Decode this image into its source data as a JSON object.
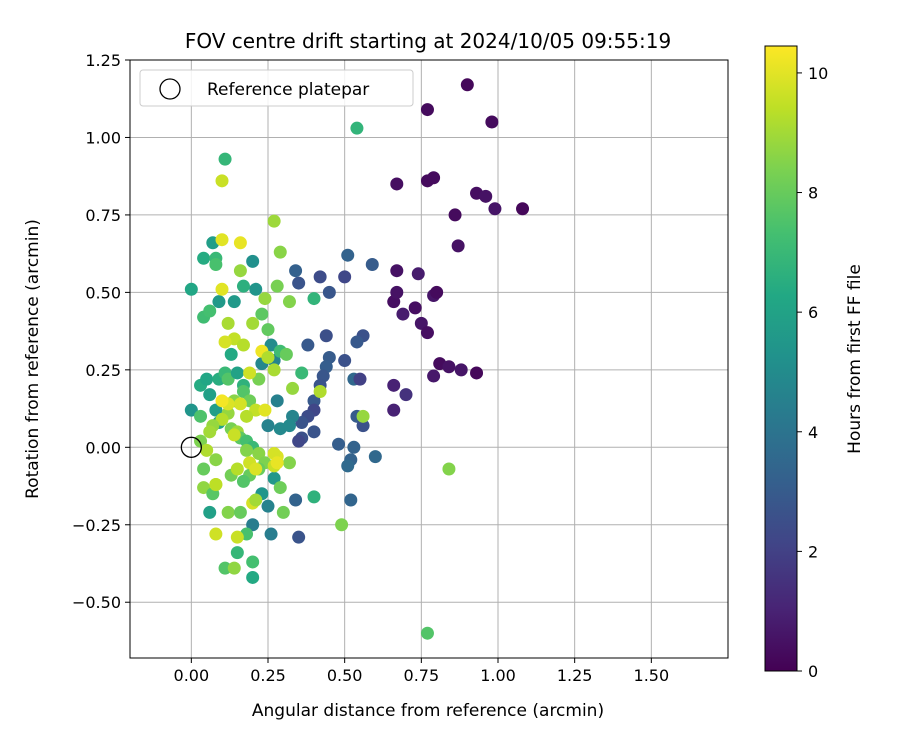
{
  "chart_data": {
    "type": "scatter",
    "title": "FOV centre drift starting at 2024/10/05 09:55:19",
    "xlabel": "Angular distance from reference (arcmin)",
    "ylabel": "Rotation from reference (arcmin)",
    "xlim": [
      -0.2,
      1.75
    ],
    "ylim": [
      -0.68,
      1.25
    ],
    "xticks": [
      "0.00",
      "0.25",
      "0.50",
      "0.75",
      "1.00",
      "1.25",
      "1.50"
    ],
    "yticks": [
      "−0.50",
      "−0.25",
      "0.00",
      "0.25",
      "0.50",
      "0.75",
      "1.00",
      "1.25"
    ],
    "grid": true,
    "legend": {
      "position": "top-left",
      "label": "Reference platepar"
    },
    "reference_point": {
      "x": 0.0,
      "y": 0.0
    },
    "colorbar": {
      "label": "Hours from first FF file",
      "min": 0,
      "max": 10.45,
      "ticks": [
        "0",
        "2",
        "4",
        "6",
        "8",
        "10"
      ],
      "colormap": "viridis"
    },
    "points": [
      [
        0.9,
        1.17,
        0.2
      ],
      [
        0.77,
        1.09,
        0.3
      ],
      [
        0.98,
        1.05,
        0.3
      ],
      [
        0.67,
        0.85,
        0.4
      ],
      [
        0.77,
        0.86,
        0.3
      ],
      [
        0.79,
        0.87,
        0.3
      ],
      [
        0.93,
        0.82,
        0.4
      ],
      [
        0.96,
        0.81,
        0.5
      ],
      [
        1.08,
        0.77,
        0.2
      ],
      [
        0.99,
        0.77,
        0.6
      ],
      [
        0.86,
        0.75,
        0.3
      ],
      [
        0.87,
        0.65,
        0.5
      ],
      [
        0.67,
        0.57,
        0.5
      ],
      [
        0.74,
        0.56,
        0.8
      ],
      [
        0.66,
        0.47,
        0.4
      ],
      [
        0.67,
        0.5,
        0.5
      ],
      [
        0.79,
        0.49,
        0.6
      ],
      [
        0.8,
        0.5,
        0.3
      ],
      [
        0.73,
        0.45,
        0.4
      ],
      [
        0.69,
        0.43,
        0.8
      ],
      [
        0.75,
        0.4,
        0.6
      ],
      [
        0.77,
        0.37,
        0.4
      ],
      [
        0.81,
        0.27,
        0.3
      ],
      [
        0.84,
        0.26,
        0.5
      ],
      [
        0.88,
        0.25,
        0.6
      ],
      [
        0.93,
        0.24,
        0.2
      ],
      [
        0.79,
        0.23,
        0.7
      ],
      [
        0.66,
        0.2,
        1.0
      ],
      [
        0.7,
        0.17,
        1.5
      ],
      [
        0.66,
        0.12,
        1.0
      ],
      [
        0.51,
        0.62,
        3.3
      ],
      [
        0.59,
        0.59,
        3.0
      ],
      [
        0.5,
        0.55,
        2.2
      ],
      [
        0.42,
        0.55,
        2.4
      ],
      [
        0.34,
        0.57,
        3.2
      ],
      [
        0.35,
        0.53,
        2.7
      ],
      [
        0.45,
        0.5,
        2.8
      ],
      [
        0.44,
        0.36,
        2.5
      ],
      [
        0.38,
        0.33,
        2.9
      ],
      [
        0.56,
        0.36,
        2.6
      ],
      [
        0.54,
        0.34,
        2.9
      ],
      [
        0.5,
        0.28,
        2.6
      ],
      [
        0.45,
        0.29,
        3.0
      ],
      [
        0.44,
        0.26,
        3.1
      ],
      [
        0.43,
        0.23,
        2.8
      ],
      [
        0.53,
        0.22,
        3.5
      ],
      [
        0.55,
        0.22,
        2.0
      ],
      [
        0.42,
        0.2,
        2.7
      ],
      [
        0.4,
        0.15,
        2.9
      ],
      [
        0.4,
        0.12,
        2.2
      ],
      [
        0.54,
        0.1,
        3.0
      ],
      [
        0.56,
        0.07,
        2.6
      ],
      [
        0.38,
        0.1,
        2.4
      ],
      [
        0.36,
        0.08,
        2.7
      ],
      [
        0.36,
        0.03,
        2.6
      ],
      [
        0.35,
        0.02,
        2.2
      ],
      [
        0.4,
        0.05,
        2.7
      ],
      [
        0.48,
        0.01,
        3.1
      ],
      [
        0.53,
        0.0,
        3.3
      ],
      [
        0.52,
        -0.04,
        3.3
      ],
      [
        0.51,
        -0.06,
        3.6
      ],
      [
        0.6,
        -0.03,
        3.5
      ],
      [
        0.52,
        -0.17,
        3.4
      ],
      [
        0.34,
        -0.17,
        3.3
      ],
      [
        0.35,
        -0.29,
        2.7
      ],
      [
        0.26,
        -0.28,
        4.4
      ],
      [
        0.2,
        -0.25,
        4.4
      ],
      [
        0.25,
        -0.19,
        4.6
      ],
      [
        0.23,
        -0.15,
        5.4
      ],
      [
        0.27,
        -0.1,
        5.5
      ],
      [
        0.29,
        0.06,
        4.9
      ],
      [
        0.25,
        0.07,
        4.6
      ],
      [
        0.28,
        0.15,
        4.5
      ],
      [
        0.33,
        0.1,
        4.7
      ],
      [
        0.32,
        0.07,
        4.9
      ],
      [
        0.27,
        0.28,
        4.7
      ],
      [
        0.23,
        0.27,
        4.8
      ],
      [
        0.26,
        0.33,
        5.0
      ],
      [
        0.2,
        0.6,
        5.2
      ],
      [
        0.21,
        0.51,
        5.4
      ],
      [
        0.14,
        0.47,
        5.6
      ],
      [
        0.09,
        0.47,
        5.6
      ],
      [
        0.07,
        0.66,
        5.8
      ],
      [
        0.04,
        0.61,
        6.4
      ],
      [
        0.08,
        0.61,
        7.0
      ],
      [
        0.08,
        0.59,
        7.4
      ],
      [
        0.0,
        0.51,
        6.2
      ],
      [
        0.04,
        0.42,
        7.2
      ],
      [
        0.06,
        0.44,
        7.3
      ],
      [
        0.11,
        0.93,
        6.9
      ],
      [
        0.54,
        1.03,
        6.8
      ],
      [
        0.17,
        0.52,
        6.6
      ],
      [
        0.23,
        0.43,
        7.8
      ],
      [
        0.25,
        0.38,
        7.9
      ],
      [
        0.29,
        0.31,
        7.2
      ],
      [
        0.03,
        0.2,
        6.4
      ],
      [
        0.05,
        0.22,
        6.2
      ],
      [
        0.06,
        0.17,
        5.9
      ],
      [
        0.08,
        0.12,
        5.8
      ],
      [
        0.09,
        0.08,
        6.1
      ],
      [
        0.0,
        0.12,
        5.4
      ],
      [
        0.03,
        0.1,
        7.5
      ],
      [
        0.09,
        0.22,
        6.5
      ],
      [
        0.11,
        0.24,
        7.0
      ],
      [
        0.12,
        0.22,
        7.6
      ],
      [
        0.13,
        0.3,
        6.3
      ],
      [
        0.15,
        0.24,
        6.0
      ],
      [
        0.17,
        0.2,
        6.7
      ],
      [
        0.17,
        0.18,
        7.6
      ],
      [
        0.19,
        0.15,
        8.1
      ],
      [
        0.14,
        0.15,
        8.6
      ],
      [
        0.12,
        0.11,
        8.8
      ],
      [
        0.1,
        0.09,
        9.3
      ],
      [
        0.13,
        0.06,
        8.3
      ],
      [
        0.15,
        0.05,
        8.9
      ],
      [
        0.16,
        0.03,
        7.8
      ],
      [
        0.18,
        0.02,
        7.3
      ],
      [
        0.2,
        0.0,
        7.0
      ],
      [
        0.18,
        -0.01,
        8.5
      ],
      [
        0.22,
        -0.02,
        8.6
      ],
      [
        0.24,
        -0.05,
        8.4
      ],
      [
        0.22,
        -0.07,
        8.0
      ],
      [
        0.19,
        -0.09,
        8.0
      ],
      [
        0.17,
        -0.11,
        7.6
      ],
      [
        0.13,
        -0.09,
        8.2
      ],
      [
        0.04,
        -0.07,
        8.0
      ],
      [
        0.04,
        -0.13,
        8.7
      ],
      [
        0.06,
        -0.21,
        5.9
      ],
      [
        0.07,
        -0.15,
        7.7
      ],
      [
        0.08,
        -0.12,
        9.4
      ],
      [
        0.12,
        -0.21,
        8.5
      ],
      [
        0.16,
        -0.21,
        8.0
      ],
      [
        0.18,
        -0.28,
        7.4
      ],
      [
        0.15,
        -0.34,
        6.9
      ],
      [
        0.15,
        -0.29,
        9.6
      ],
      [
        0.11,
        -0.39,
        7.6
      ],
      [
        0.14,
        -0.39,
        8.7
      ],
      [
        0.2,
        -0.37,
        7.3
      ],
      [
        0.2,
        -0.42,
        6.3
      ],
      [
        0.08,
        -0.28,
        9.7
      ],
      [
        0.29,
        -0.13,
        8.1
      ],
      [
        0.3,
        -0.21,
        8.2
      ],
      [
        0.32,
        -0.05,
        8.5
      ],
      [
        0.28,
        -0.03,
        9.9
      ],
      [
        0.27,
        -0.06,
        9.6
      ],
      [
        0.1,
        0.86,
        9.6
      ],
      [
        0.1,
        0.67,
        10.0
      ],
      [
        0.16,
        0.66,
        10.1
      ],
      [
        0.27,
        0.73,
        8.9
      ],
      [
        0.29,
        0.63,
        8.6
      ],
      [
        0.16,
        0.57,
        8.8
      ],
      [
        0.1,
        0.51,
        10.0
      ],
      [
        0.24,
        0.48,
        8.8
      ],
      [
        0.28,
        0.52,
        8.3
      ],
      [
        0.32,
        0.47,
        8.5
      ],
      [
        0.12,
        0.4,
        9.1
      ],
      [
        0.14,
        0.35,
        9.5
      ],
      [
        0.17,
        0.33,
        9.3
      ],
      [
        0.11,
        0.34,
        9.8
      ],
      [
        0.2,
        0.4,
        9.0
      ],
      [
        0.23,
        0.31,
        10.2
      ],
      [
        0.25,
        0.29,
        9.2
      ],
      [
        0.27,
        0.25,
        9.1
      ],
      [
        0.22,
        0.22,
        8.3
      ],
      [
        0.19,
        0.24,
        9.7
      ],
      [
        0.33,
        0.19,
        8.8
      ],
      [
        0.42,
        0.18,
        9.2
      ],
      [
        0.36,
        0.24,
        7.0
      ],
      [
        0.31,
        0.3,
        8.0
      ],
      [
        0.56,
        0.1,
        8.8
      ],
      [
        0.21,
        0.12,
        9.5
      ],
      [
        0.24,
        0.12,
        10.0
      ],
      [
        0.18,
        0.1,
        9.3
      ],
      [
        0.16,
        0.14,
        9.8
      ],
      [
        0.12,
        0.14,
        9.9
      ],
      [
        0.1,
        0.15,
        10.3
      ],
      [
        0.07,
        0.07,
        8.8
      ],
      [
        0.06,
        0.05,
        9.0
      ],
      [
        0.03,
        0.02,
        8.4
      ],
      [
        0.14,
        0.04,
        9.6
      ],
      [
        0.05,
        -0.01,
        9.2
      ],
      [
        0.08,
        -0.04,
        8.6
      ],
      [
        0.15,
        -0.07,
        9.3
      ],
      [
        0.19,
        -0.05,
        9.7
      ],
      [
        0.21,
        -0.07,
        9.9
      ],
      [
        0.27,
        -0.02,
        9.8
      ],
      [
        0.28,
        -0.05,
        10.1
      ],
      [
        0.08,
        -0.12,
        9.4
      ],
      [
        0.2,
        -0.18,
        9.8
      ],
      [
        0.21,
        -0.17,
        9.0
      ],
      [
        0.49,
        -0.25,
        8.4
      ],
      [
        0.4,
        -0.16,
        6.7
      ],
      [
        0.84,
        -0.07,
        8.5
      ],
      [
        0.77,
        -0.6,
        7.6
      ],
      [
        0.4,
        0.48,
        6.8
      ]
    ]
  }
}
